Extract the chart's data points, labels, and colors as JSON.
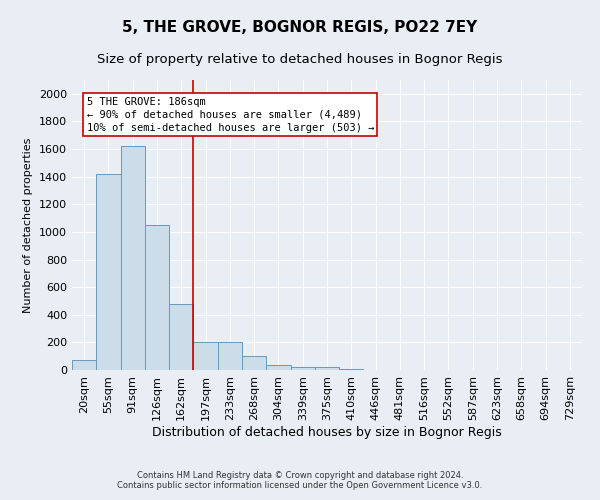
{
  "title": "5, THE GROVE, BOGNOR REGIS, PO22 7EY",
  "subtitle": "Size of property relative to detached houses in Bognor Regis",
  "xlabel": "Distribution of detached houses by size in Bognor Regis",
  "ylabel": "Number of detached properties",
  "footer_line1": "Contains HM Land Registry data © Crown copyright and database right 2024.",
  "footer_line2": "Contains public sector information licensed under the Open Government Licence v3.0.",
  "categories": [
    "20sqm",
    "55sqm",
    "91sqm",
    "126sqm",
    "162sqm",
    "197sqm",
    "233sqm",
    "268sqm",
    "304sqm",
    "339sqm",
    "375sqm",
    "410sqm",
    "446sqm",
    "481sqm",
    "516sqm",
    "552sqm",
    "587sqm",
    "623sqm",
    "658sqm",
    "694sqm",
    "729sqm"
  ],
  "values": [
    75,
    1420,
    1620,
    1050,
    480,
    200,
    200,
    100,
    35,
    25,
    20,
    10,
    0,
    0,
    0,
    0,
    0,
    0,
    0,
    0,
    0
  ],
  "bar_color": "#ccdce8",
  "bar_edge_color": "#6699bb",
  "vline_x": 4.5,
  "vline_color": "#cc0000",
  "annotation_text": "5 THE GROVE: 186sqm\n← 90% of detached houses are smaller (4,489)\n10% of semi-detached houses are larger (503) →",
  "annotation_box_color": "white",
  "annotation_box_edge_color": "#cc0000",
  "ylim": [
    0,
    2100
  ],
  "yticks": [
    0,
    200,
    400,
    600,
    800,
    1000,
    1200,
    1400,
    1600,
    1800,
    2000
  ],
  "title_fontsize": 11,
  "subtitle_fontsize": 9.5,
  "xlabel_fontsize": 9,
  "ylabel_fontsize": 8,
  "tick_fontsize": 8,
  "annot_fontsize": 7.5,
  "footer_fontsize": 6,
  "background_color": "#e8eef4",
  "grid_color": "white",
  "grid_linewidth": 0.8
}
